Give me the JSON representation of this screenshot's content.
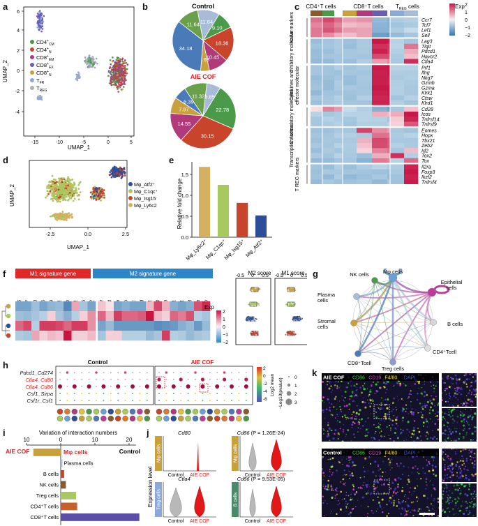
{
  "panels": {
    "a": {
      "label": "a",
      "xlabel": "UMAP_1",
      "ylabel": "UMAP_2",
      "xticks": [
        "-15",
        "-10",
        "-5",
        "0",
        "5"
      ],
      "yticks": [
        "6",
        "4",
        "2",
        "0",
        "-2",
        "-4"
      ],
      "legend": [
        {
          "base": "CD4",
          "sup": "+",
          "sub": "CM",
          "color": "#4a9a4a"
        },
        {
          "base": "CD4",
          "sup": "+",
          "sub": "N",
          "color": "#c8452c"
        },
        {
          "base": "CD8",
          "sup": "+",
          "sub": "EM",
          "color": "#b03a7a"
        },
        {
          "base": "CD8",
          "sup": "+",
          "sub": "EX",
          "color": "#6a5db8"
        },
        {
          "base": "CD8",
          "sup": "+",
          "sub": "N",
          "color": "#c9a13c"
        },
        {
          "base": "T",
          "sup": "",
          "sub": "FR",
          "color": "#8aa8d8"
        },
        {
          "base": "T",
          "sup": "",
          "sub": "REG",
          "color": "#b0b0b0"
        }
      ]
    },
    "b": {
      "label": "b",
      "control_title": "Control",
      "cof_title": "AIE COF",
      "control": [
        {
          "v": 9.1,
          "t": "9.10",
          "c": "#4a9a4a"
        },
        {
          "v": 18.36,
          "t": "18.36",
          "c": "#c8452c"
        },
        {
          "v": 10.45,
          "t": "10.45",
          "c": "#b03a7a"
        },
        {
          "v": 4.63,
          "t": "4.63",
          "c": "#c9a13c"
        },
        {
          "v": 34.18,
          "t": "34.18",
          "c": "#4a7ab8"
        },
        {
          "v": 11.64,
          "t": "11.64",
          "c": "#6aa04a"
        },
        {
          "v": 11.64,
          "t": "11.64",
          "c": "#a8bcd8"
        }
      ],
      "cof": [
        {
          "v": 22.78,
          "t": "22.78",
          "c": "#4a9a4a"
        },
        {
          "v": 30.15,
          "t": "30.15",
          "c": "#c8452c"
        },
        {
          "v": 14.55,
          "t": "14.55",
          "c": "#b03a7a"
        },
        {
          "v": 7.97,
          "t": "7.97",
          "c": "#c9a13c"
        },
        {
          "v": 6.39,
          "t": "6.39",
          "c": "#4a7ab8"
        },
        {
          "v": 11.32,
          "t": "11.32",
          "c": "#6aa04a"
        },
        {
          "v": 6.85,
          "t": "6.85",
          "c": "#a8bcd8"
        }
      ]
    },
    "c": {
      "label": "c",
      "group_cd4": "CD4⁺T cells",
      "group_cd8": "CD8⁺T cells",
      "group_treg": "T",
      "group_treg_sub": "REG",
      "group_treg_tail": " cells",
      "legend_title": "Exp",
      "legend_ticks": [
        "2",
        "1",
        "0",
        "−1",
        "−2"
      ],
      "categories": [
        {
          "name": "Naive markers",
          "genes": [
            "Ccr7",
            "Tcf7",
            "Lef1",
            "Sell"
          ]
        },
        {
          "name": "Inhibitory molecular",
          "genes": [
            "Lag3",
            "Tigit",
            "Pdcd1",
            "Havcr2",
            "Ctla4"
          ]
        },
        {
          "name": "Cytokines and effector molecular",
          "genes": [
            "Prf1",
            "Ifng",
            "Nkg7",
            "Gzmb",
            "Gzma",
            "Klrk1",
            "Ctsw",
            "Klrd1"
          ]
        },
        {
          "name": "Co-stimulatory molecules",
          "genes": [
            "Cd28",
            "Icos",
            "Tnfrsf14",
            "Tnfrsf9"
          ]
        },
        {
          "name": "Transcription factors",
          "genes": [
            "Eomes",
            "Hopx",
            "Tbx21",
            "Zeb2",
            "Id2",
            "Tox2",
            "Tox"
          ]
        },
        {
          "name": "T REG markers",
          "genes": [
            "Il2ra",
            "Foxp3",
            "Ikzf2",
            "Tnfrsf4"
          ]
        }
      ]
    },
    "d": {
      "label": "d",
      "xlabel": "UMAP_1",
      "ylabel": "UMAP_2",
      "xticks": [
        "-2.5",
        "0.0",
        "2.5"
      ],
      "legend": [
        {
          "text": "Mφ_Atf2⁺",
          "color": "#2c4e9a"
        },
        {
          "text": "Mφ_C1qc⁺",
          "color": "#a8c860"
        },
        {
          "text": "Mφ_Isg15⁺",
          "color": "#c8452c"
        },
        {
          "text": "Mφ_Ly6c2⁺",
          "color": "#d4b060"
        }
      ]
    },
    "e": {
      "label": "e",
      "ylabel": "Relative fold change",
      "yticks": [
        "0.0",
        "0.5",
        "1.0",
        "1.5"
      ],
      "chart_data": {
        "type": "bar",
        "categories": [
          "Mφ_Ly6c2⁺",
          "Mφ_C1qc⁺",
          "Mφ_Isg15⁺",
          "Mφ_Atf2⁺"
        ],
        "values": [
          1.68,
          1.25,
          0.82,
          0.52
        ],
        "colors": [
          "#d4b060",
          "#a8c860",
          "#c8452c",
          "#2c4e9a"
        ],
        "ylim": [
          0,
          1.8
        ]
      }
    },
    "f": {
      "label": "f",
      "m1_title": "M1 signature gene",
      "m2_title": "M2 signature gene",
      "m1_genes": [
        "Ccl5",
        "Ccr7",
        "Cd40",
        "Cd86",
        "Cxcl9",
        "Ido1",
        "Il1b",
        "Irf1",
        "Irf5",
        "Nos2"
      ],
      "m2_genes": [
        "Ccl22",
        "Cd274",
        "Ctsa",
        "Ctsb",
        "Ctsc",
        "Ctsd",
        "Fn1",
        "Il4",
        "Mmp9",
        "Msr1",
        "Tgfb1",
        "Tgfb3",
        "Vegfa",
        "Vegfb"
      ],
      "legend_title": "Exp",
      "legend_ticks": [
        "2",
        "1",
        "0",
        "−1",
        "−2"
      ],
      "m2_score": "M2 score",
      "m1_score": "M1 score",
      "score_ticks": [
        "-0.5",
        "0",
        "0.5"
      ]
    },
    "g": {
      "label": "g",
      "nodes": [
        {
          "text": "Mφ cells",
          "color": "#6aa0d8"
        },
        {
          "text": "Epithelial cells",
          "color": "#c03a9a"
        },
        {
          "text": "B cells",
          "color": "#d8d8d8"
        },
        {
          "text": "CD4⁺Tcell",
          "color": "#e0e0e0"
        },
        {
          "text": "Treg cells",
          "color": "#8a9ad8"
        },
        {
          "text": "CD8⁺Tcell",
          "color": "#4a7ab8"
        },
        {
          "text": "Stromal cells",
          "color": "#c9a13c"
        },
        {
          "text": "Plasma cells",
          "color": "#a8bcd8"
        },
        {
          "text": "NK cells",
          "color": "#4a9a4a"
        }
      ]
    },
    "h": {
      "label": "h",
      "control_title": "Control",
      "cof_title": "AIE COF",
      "pairs": [
        {
          "text": "Pdcd1_Cd274",
          "red": false
        },
        {
          "text": "Ctla4_Cd80",
          "red": true
        },
        {
          "text": "Ctla4_Cd86",
          "red": true
        },
        {
          "text": "Csf1_Sirpa",
          "red": false
        },
        {
          "text": "Csf1r_Csf1",
          "red": false
        }
      ],
      "color_title": "Log2 mean",
      "color_ticks": [
        "2",
        "0",
        "-2",
        "-4",
        "-6"
      ],
      "size_title": "−Log10(pvalue)",
      "size_ticks": [
        "0",
        "1",
        "2",
        "3"
      ]
    },
    "i": {
      "label": "i",
      "title": "Variation of interaction numbers",
      "xticks": [
        "10",
        "0",
        "10",
        "20"
      ],
      "left": "AIE COF",
      "mid": "Mφ cells",
      "right": "Control",
      "chart_data": {
        "type": "bar",
        "categories": [
          "Mφ cells",
          "Plasma cells",
          "B cells",
          "NK cells",
          "Treg cells",
          "CD4⁺T cells",
          "CD8⁺T cells"
        ],
        "values": [
          -8,
          0.5,
          1,
          1.5,
          4.5,
          4.8,
          23
        ],
        "colors": [
          "#c9a13c",
          "#a8bcd8",
          "#c8452c",
          "#8b5a2b",
          "#a8c860",
          "#c8602c",
          "#5a4ea8"
        ]
      }
    },
    "j": {
      "label": "j",
      "ylabel": "Expression level",
      "control": "Control",
      "cof": "AIE COF",
      "v1_gene": "Cd80",
      "v1_group": "Mφ cells",
      "v2_gene": "Cd86",
      "v2_p": "(P = 1.26E-24)",
      "v2_group": "Mφ cells",
      "v3_gene": "Ctla4",
      "v3_group": "Treg cells",
      "v4_gene": "Cd86",
      "v4_p": "(P = 9.53E-05)",
      "v4_group": "B cells"
    },
    "k": {
      "label": "k",
      "top_title": "AIE COF",
      "bottom_title": "Control",
      "channels": [
        {
          "text": "CD86",
          "color": "#3ad83a"
        },
        {
          "text": "CD19",
          "color": "#e048e0"
        },
        {
          "text": "F4/80",
          "color": "#f0e040"
        },
        {
          "text": "DAPI",
          "color": "#3a5ae0"
        }
      ]
    }
  }
}
